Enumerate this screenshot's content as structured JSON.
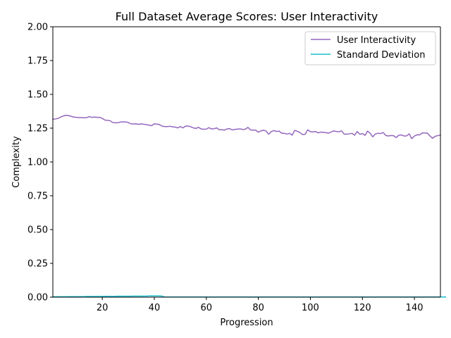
{
  "chart_data": {
    "type": "line",
    "title": "Full Dataset Average Scores: User Interactivity",
    "xlabel": "Progression",
    "ylabel": "Complexity",
    "xlim": [
      1,
      150
    ],
    "ylim": [
      0,
      2
    ],
    "x_ticks": [
      20,
      40,
      60,
      80,
      100,
      120,
      140
    ],
    "y_ticks": [
      0.0,
      0.25,
      0.5,
      0.75,
      1.0,
      1.25,
      1.5,
      1.75,
      2.0
    ],
    "y_tick_labels": [
      "0.00",
      "0.25",
      "0.50",
      "0.75",
      "1.00",
      "1.25",
      "1.50",
      "1.75",
      "2.00"
    ],
    "grid": false,
    "legend_position": "top-right",
    "series": [
      {
        "name": "User Interactivity",
        "color": "#9467bd",
        "x_start": 1,
        "values": [
          1.315,
          1.318,
          1.322,
          1.332,
          1.34,
          1.345,
          1.343,
          1.338,
          1.332,
          1.33,
          1.328,
          1.328,
          1.327,
          1.328,
          1.335,
          1.33,
          1.332,
          1.33,
          1.33,
          1.322,
          1.31,
          1.308,
          1.305,
          1.292,
          1.29,
          1.29,
          1.296,
          1.296,
          1.296,
          1.292,
          1.282,
          1.281,
          1.282,
          1.278,
          1.282,
          1.279,
          1.276,
          1.272,
          1.268,
          1.282,
          1.28,
          1.276,
          1.265,
          1.262,
          1.262,
          1.264,
          1.26,
          1.258,
          1.252,
          1.262,
          1.252,
          1.265,
          1.266,
          1.26,
          1.252,
          1.248,
          1.256,
          1.244,
          1.242,
          1.243,
          1.254,
          1.244,
          1.246,
          1.252,
          1.238,
          1.238,
          1.235,
          1.245,
          1.246,
          1.237,
          1.241,
          1.243,
          1.245,
          1.24,
          1.242,
          1.256,
          1.237,
          1.236,
          1.235,
          1.22,
          1.23,
          1.235,
          1.228,
          1.205,
          1.225,
          1.232,
          1.226,
          1.228,
          1.212,
          1.212,
          1.206,
          1.212,
          1.198,
          1.234,
          1.226,
          1.218,
          1.202,
          1.205,
          1.238,
          1.224,
          1.222,
          1.225,
          1.215,
          1.221,
          1.219,
          1.217,
          1.213,
          1.222,
          1.23,
          1.225,
          1.223,
          1.23,
          1.206,
          1.206,
          1.208,
          1.212,
          1.198,
          1.225,
          1.205,
          1.21,
          1.197,
          1.228,
          1.212,
          1.186,
          1.208,
          1.212,
          1.21,
          1.218,
          1.196,
          1.192,
          1.196,
          1.194,
          1.18,
          1.198,
          1.2,
          1.192,
          1.193,
          1.208,
          1.172,
          1.192,
          1.201,
          1.2,
          1.215,
          1.214,
          1.213,
          1.192,
          1.175,
          1.19,
          1.195,
          1.198
        ]
      },
      {
        "name": "Standard Deviation",
        "color": "#17becf",
        "x_start": 1,
        "values": [
          0.003,
          0.003,
          0.003,
          0.003,
          0.003,
          0.003,
          0.004,
          0.004,
          0.004,
          0.004,
          0.004,
          0.004,
          0.004,
          0.005,
          0.005,
          0.005,
          0.005,
          0.005,
          0.005,
          0.006,
          0.006,
          0.006,
          0.006,
          0.006,
          0.006,
          0.007,
          0.007,
          0.007,
          0.007,
          0.007,
          0.007,
          0.008,
          0.008,
          0.008,
          0.008,
          0.008,
          0.008,
          0.009,
          0.009,
          0.009,
          0.009,
          0.009,
          0.008,
          0.001,
          0.001,
          0.001,
          0.001,
          0.001,
          0.001,
          0.001,
          0.001,
          0.001,
          0.001,
          0.001,
          0.001,
          0.001,
          0.001,
          0.001,
          0.001,
          0.001,
          0.001,
          0.001,
          0.001,
          0.001,
          0.001,
          0.001,
          0.001,
          0.001,
          0.001,
          0.001,
          0.001,
          0.001,
          0.001,
          0.001,
          0.001,
          0.001,
          0.001,
          0.001,
          0.001,
          0.001,
          0.001,
          0.001,
          0.001,
          0.001,
          0.001,
          0.001,
          0.001,
          0.001,
          0.001,
          0.001,
          0.001,
          0.001,
          0.001,
          0.001,
          0.001,
          0.001,
          0.001,
          0.001,
          0.001,
          0.001,
          0.001,
          0.001,
          0.001,
          0.001,
          0.001,
          0.001,
          0.001,
          0.001,
          0.001,
          0.001,
          0.001,
          0.001,
          0.001,
          0.001,
          0.001,
          0.001,
          0.001,
          0.001,
          0.001,
          0.001,
          0.001,
          0.001,
          0.001,
          0.001,
          0.001,
          0.001,
          0.001,
          0.001,
          0.001,
          0.001,
          0.001,
          0.001,
          0.001,
          0.001,
          0.001,
          0.001,
          0.001,
          0.001,
          0.001,
          0.001,
          0.001,
          0.001,
          0.001,
          0.001,
          0.001,
          0.001,
          0.001,
          0.001,
          0.001,
          0.001,
          0.001,
          0.001
        ]
      }
    ]
  }
}
